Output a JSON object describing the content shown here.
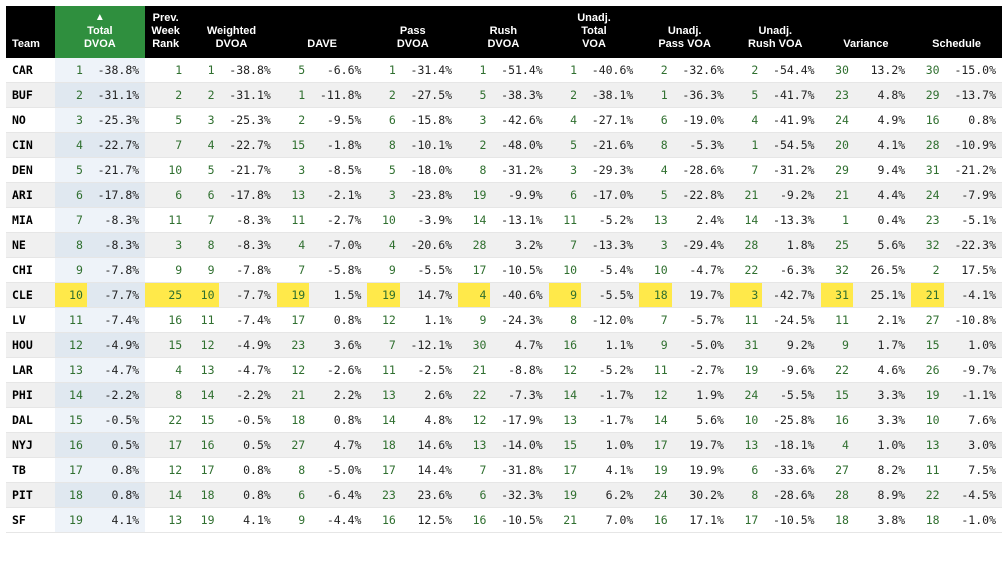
{
  "table": {
    "sorted_column_index": 1,
    "sort_dir": "asc",
    "headers": [
      {
        "label": "Team",
        "type": "team"
      },
      {
        "label": "Total\nDVOA",
        "type": "rankval",
        "sorted": true
      },
      {
        "label": "Prev.\nWeek\nRank",
        "type": "prev"
      },
      {
        "label": "Weighted\nDVOA",
        "type": "rankval"
      },
      {
        "label": "DAVE",
        "type": "rankval"
      },
      {
        "label": "Pass\nDVOA",
        "type": "rankval"
      },
      {
        "label": "Rush\nDVOA",
        "type": "rankval"
      },
      {
        "label": "Unadj.\nTotal\nVOA",
        "type": "rankval"
      },
      {
        "label": "Unadj.\nPass VOA",
        "type": "rankval"
      },
      {
        "label": "Unadj.\nRush VOA",
        "type": "rankval"
      },
      {
        "label": "Variance",
        "type": "rankval"
      },
      {
        "label": "Schedule",
        "type": "rankval"
      }
    ],
    "highlight_team": "CLE",
    "rows": [
      {
        "team": "CAR",
        "alt": false,
        "cells": [
          [
            1,
            "-38.8%"
          ],
          [
            1
          ],
          [
            1,
            "-38.8%"
          ],
          [
            5,
            "-6.6%"
          ],
          [
            1,
            "-31.4%"
          ],
          [
            1,
            "-51.4%"
          ],
          [
            1,
            "-40.6%"
          ],
          [
            2,
            "-32.6%"
          ],
          [
            2,
            "-54.4%"
          ],
          [
            30,
            "13.2%"
          ],
          [
            30,
            "-15.0%"
          ]
        ]
      },
      {
        "team": "BUF",
        "alt": true,
        "cells": [
          [
            2,
            "-31.1%"
          ],
          [
            2
          ],
          [
            2,
            "-31.1%"
          ],
          [
            1,
            "-11.8%"
          ],
          [
            2,
            "-27.5%"
          ],
          [
            5,
            "-38.3%"
          ],
          [
            2,
            "-38.1%"
          ],
          [
            1,
            "-36.3%"
          ],
          [
            5,
            "-41.7%"
          ],
          [
            23,
            "4.8%"
          ],
          [
            29,
            "-13.7%"
          ]
        ]
      },
      {
        "team": "NO",
        "alt": false,
        "cells": [
          [
            3,
            "-25.3%"
          ],
          [
            5
          ],
          [
            3,
            "-25.3%"
          ],
          [
            2,
            "-9.5%"
          ],
          [
            6,
            "-15.8%"
          ],
          [
            3,
            "-42.6%"
          ],
          [
            4,
            "-27.1%"
          ],
          [
            6,
            "-19.0%"
          ],
          [
            4,
            "-41.9%"
          ],
          [
            24,
            "4.9%"
          ],
          [
            16,
            "0.8%"
          ]
        ]
      },
      {
        "team": "CIN",
        "alt": true,
        "cells": [
          [
            4,
            "-22.7%"
          ],
          [
            7
          ],
          [
            4,
            "-22.7%"
          ],
          [
            15,
            "-1.8%"
          ],
          [
            8,
            "-10.1%"
          ],
          [
            2,
            "-48.0%"
          ],
          [
            5,
            "-21.6%"
          ],
          [
            8,
            "-5.3%"
          ],
          [
            1,
            "-54.5%"
          ],
          [
            20,
            "4.1%"
          ],
          [
            28,
            "-10.9%"
          ]
        ]
      },
      {
        "team": "DEN",
        "alt": false,
        "cells": [
          [
            5,
            "-21.7%"
          ],
          [
            10
          ],
          [
            5,
            "-21.7%"
          ],
          [
            3,
            "-8.5%"
          ],
          [
            5,
            "-18.0%"
          ],
          [
            8,
            "-31.2%"
          ],
          [
            3,
            "-29.3%"
          ],
          [
            4,
            "-28.6%"
          ],
          [
            7,
            "-31.2%"
          ],
          [
            29,
            "9.4%"
          ],
          [
            31,
            "-21.2%"
          ]
        ]
      },
      {
        "team": "ARI",
        "alt": true,
        "cells": [
          [
            6,
            "-17.8%"
          ],
          [
            6
          ],
          [
            6,
            "-17.8%"
          ],
          [
            13,
            "-2.1%"
          ],
          [
            3,
            "-23.8%"
          ],
          [
            19,
            "-9.9%"
          ],
          [
            6,
            "-17.0%"
          ],
          [
            5,
            "-22.8%"
          ],
          [
            21,
            "-9.2%"
          ],
          [
            21,
            "4.4%"
          ],
          [
            24,
            "-7.9%"
          ]
        ]
      },
      {
        "team": "MIA",
        "alt": false,
        "cells": [
          [
            7,
            "-8.3%"
          ],
          [
            11
          ],
          [
            7,
            "-8.3%"
          ],
          [
            11,
            "-2.7%"
          ],
          [
            10,
            "-3.9%"
          ],
          [
            14,
            "-13.1%"
          ],
          [
            11,
            "-5.2%"
          ],
          [
            13,
            "2.4%"
          ],
          [
            14,
            "-13.3%"
          ],
          [
            1,
            "0.4%"
          ],
          [
            23,
            "-5.1%"
          ]
        ]
      },
      {
        "team": "NE",
        "alt": true,
        "cells": [
          [
            8,
            "-8.3%"
          ],
          [
            3
          ],
          [
            8,
            "-8.3%"
          ],
          [
            4,
            "-7.0%"
          ],
          [
            4,
            "-20.6%"
          ],
          [
            28,
            "3.2%"
          ],
          [
            7,
            "-13.3%"
          ],
          [
            3,
            "-29.4%"
          ],
          [
            28,
            "1.8%"
          ],
          [
            25,
            "5.6%"
          ],
          [
            32,
            "-22.3%"
          ]
        ]
      },
      {
        "team": "CHI",
        "alt": false,
        "cells": [
          [
            9,
            "-7.8%"
          ],
          [
            9
          ],
          [
            9,
            "-7.8%"
          ],
          [
            7,
            "-5.8%"
          ],
          [
            9,
            "-5.5%"
          ],
          [
            17,
            "-10.5%"
          ],
          [
            10,
            "-5.4%"
          ],
          [
            10,
            "-4.7%"
          ],
          [
            22,
            "-6.3%"
          ],
          [
            32,
            "26.5%"
          ],
          [
            2,
            "17.5%"
          ]
        ]
      },
      {
        "team": "CLE",
        "alt": true,
        "cells": [
          [
            10,
            "-7.7%"
          ],
          [
            25
          ],
          [
            10,
            "-7.7%"
          ],
          [
            19,
            "1.5%"
          ],
          [
            19,
            "14.7%"
          ],
          [
            4,
            "-40.6%"
          ],
          [
            9,
            "-5.5%"
          ],
          [
            18,
            "19.7%"
          ],
          [
            3,
            "-42.7%"
          ],
          [
            31,
            "25.1%"
          ],
          [
            21,
            "-4.1%"
          ]
        ]
      },
      {
        "team": "LV",
        "alt": false,
        "cells": [
          [
            11,
            "-7.4%"
          ],
          [
            16
          ],
          [
            11,
            "-7.4%"
          ],
          [
            17,
            "0.8%"
          ],
          [
            12,
            "1.1%"
          ],
          [
            9,
            "-24.3%"
          ],
          [
            8,
            "-12.0%"
          ],
          [
            7,
            "-5.7%"
          ],
          [
            11,
            "-24.5%"
          ],
          [
            11,
            "2.1%"
          ],
          [
            27,
            "-10.8%"
          ]
        ]
      },
      {
        "team": "HOU",
        "alt": true,
        "cells": [
          [
            12,
            "-4.9%"
          ],
          [
            15
          ],
          [
            12,
            "-4.9%"
          ],
          [
            23,
            "3.6%"
          ],
          [
            7,
            "-12.1%"
          ],
          [
            30,
            "4.7%"
          ],
          [
            16,
            "1.1%"
          ],
          [
            9,
            "-5.0%"
          ],
          [
            31,
            "9.2%"
          ],
          [
            9,
            "1.7%"
          ],
          [
            15,
            "1.0%"
          ]
        ]
      },
      {
        "team": "LAR",
        "alt": false,
        "cells": [
          [
            13,
            "-4.7%"
          ],
          [
            4
          ],
          [
            13,
            "-4.7%"
          ],
          [
            12,
            "-2.6%"
          ],
          [
            11,
            "-2.5%"
          ],
          [
            21,
            "-8.8%"
          ],
          [
            12,
            "-5.2%"
          ],
          [
            11,
            "-2.7%"
          ],
          [
            19,
            "-9.6%"
          ],
          [
            22,
            "4.6%"
          ],
          [
            26,
            "-9.7%"
          ]
        ]
      },
      {
        "team": "PHI",
        "alt": true,
        "cells": [
          [
            14,
            "-2.2%"
          ],
          [
            8
          ],
          [
            14,
            "-2.2%"
          ],
          [
            21,
            "2.2%"
          ],
          [
            13,
            "2.6%"
          ],
          [
            22,
            "-7.3%"
          ],
          [
            14,
            "-1.7%"
          ],
          [
            12,
            "1.9%"
          ],
          [
            24,
            "-5.5%"
          ],
          [
            15,
            "3.3%"
          ],
          [
            19,
            "-1.1%"
          ]
        ]
      },
      {
        "team": "DAL",
        "alt": false,
        "cells": [
          [
            15,
            "-0.5%"
          ],
          [
            22
          ],
          [
            15,
            "-0.5%"
          ],
          [
            18,
            "0.8%"
          ],
          [
            14,
            "4.8%"
          ],
          [
            12,
            "-17.9%"
          ],
          [
            13,
            "-1.7%"
          ],
          [
            14,
            "5.6%"
          ],
          [
            10,
            "-25.8%"
          ],
          [
            16,
            "3.3%"
          ],
          [
            10,
            "7.6%"
          ]
        ]
      },
      {
        "team": "NYJ",
        "alt": true,
        "cells": [
          [
            16,
            "0.5%"
          ],
          [
            17
          ],
          [
            16,
            "0.5%"
          ],
          [
            27,
            "4.7%"
          ],
          [
            18,
            "14.6%"
          ],
          [
            13,
            "-14.0%"
          ],
          [
            15,
            "1.0%"
          ],
          [
            17,
            "19.7%"
          ],
          [
            13,
            "-18.1%"
          ],
          [
            4,
            "1.0%"
          ],
          [
            13,
            "3.0%"
          ]
        ]
      },
      {
        "team": "TB",
        "alt": false,
        "cells": [
          [
            17,
            "0.8%"
          ],
          [
            12
          ],
          [
            17,
            "0.8%"
          ],
          [
            8,
            "-5.0%"
          ],
          [
            17,
            "14.4%"
          ],
          [
            7,
            "-31.8%"
          ],
          [
            17,
            "4.1%"
          ],
          [
            19,
            "19.9%"
          ],
          [
            6,
            "-33.6%"
          ],
          [
            27,
            "8.2%"
          ],
          [
            11,
            "7.5%"
          ]
        ]
      },
      {
        "team": "PIT",
        "alt": true,
        "cells": [
          [
            18,
            "0.8%"
          ],
          [
            14
          ],
          [
            18,
            "0.8%"
          ],
          [
            6,
            "-6.4%"
          ],
          [
            23,
            "23.6%"
          ],
          [
            6,
            "-32.3%"
          ],
          [
            19,
            "6.2%"
          ],
          [
            24,
            "30.2%"
          ],
          [
            8,
            "-28.6%"
          ],
          [
            28,
            "8.9%"
          ],
          [
            22,
            "-4.5%"
          ]
        ]
      },
      {
        "team": "SF",
        "alt": false,
        "cells": [
          [
            19,
            "4.1%"
          ],
          [
            13
          ],
          [
            19,
            "4.1%"
          ],
          [
            9,
            "-4.4%"
          ],
          [
            16,
            "12.5%"
          ],
          [
            16,
            "-10.5%"
          ],
          [
            21,
            "7.0%"
          ],
          [
            16,
            "17.1%"
          ],
          [
            17,
            "-10.5%"
          ],
          [
            18,
            "3.8%"
          ],
          [
            18,
            "-1.0%"
          ]
        ]
      }
    ]
  },
  "colors": {
    "header_bg": "#000000",
    "sorted_bg": "#2f8f3e",
    "rank_color": "#2f6f2f",
    "alt_row": "#f0f0f0",
    "sorted_col_row": "#eef3f9",
    "sorted_col_alt": "#e0e8f0",
    "highlight": "#ffe94a",
    "border": "#e6e6e6"
  }
}
